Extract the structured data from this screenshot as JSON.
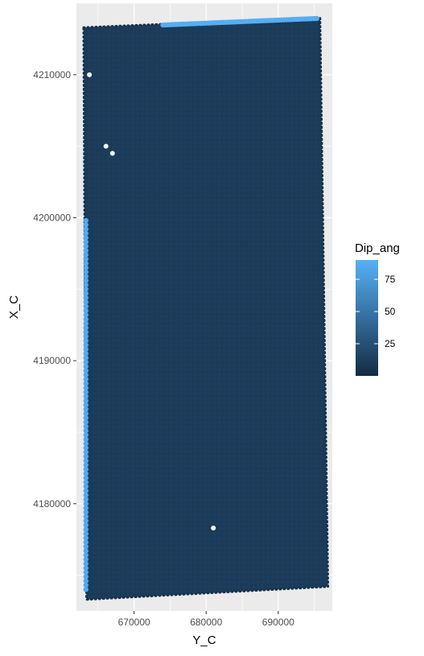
{
  "chart_data": {
    "type": "scatter",
    "title": "",
    "xlabel": "Y_C",
    "ylabel": "X_C",
    "xlim": [
      662000,
      697500
    ],
    "ylim": [
      4172500,
      4215000
    ],
    "x_ticks": [
      670000,
      680000,
      690000
    ],
    "x_tick_labels": [
      "670000",
      "680000",
      "690000"
    ],
    "y_ticks": [
      4180000,
      4190000,
      4200000,
      4210000
    ],
    "y_tick_labels": [
      "4180000",
      "4190000",
      "4200000",
      "4210000"
    ],
    "grid": true,
    "panel_background": "#ebebeb",
    "grid_color": "#ffffff",
    "survey_outline": [
      {
        "x": 663000,
        "y": 4213300
      },
      {
        "x": 695800,
        "y": 4214000
      },
      {
        "x": 696900,
        "y": 4174200
      },
      {
        "x": 663400,
        "y": 4173300
      }
    ],
    "dominant_value": 10,
    "high_value_zones": [
      {
        "description": "north edge strip",
        "x_range": [
          674000,
          695500
        ],
        "y": 4213700,
        "value": 88
      },
      {
        "description": "west edge strip",
        "x": 663200,
        "y_range": [
          4174000,
          4200000
        ],
        "value": 85
      }
    ],
    "data_gaps": [
      {
        "x": 667000,
        "y": 4204500
      },
      {
        "x": 666100,
        "y": 4205000
      },
      {
        "x": 663800,
        "y": 4210000
      },
      {
        "x": 681000,
        "y": 4178300
      }
    ],
    "legend": {
      "title": "Dip_ang",
      "position": "right",
      "type": "colorbar",
      "min": 0,
      "max": 90,
      "ticks": [
        25,
        50,
        75
      ],
      "tick_labels": [
        "25",
        "50",
        "75"
      ],
      "low_color": "#132b43",
      "high_color": "#56b1f7"
    }
  }
}
